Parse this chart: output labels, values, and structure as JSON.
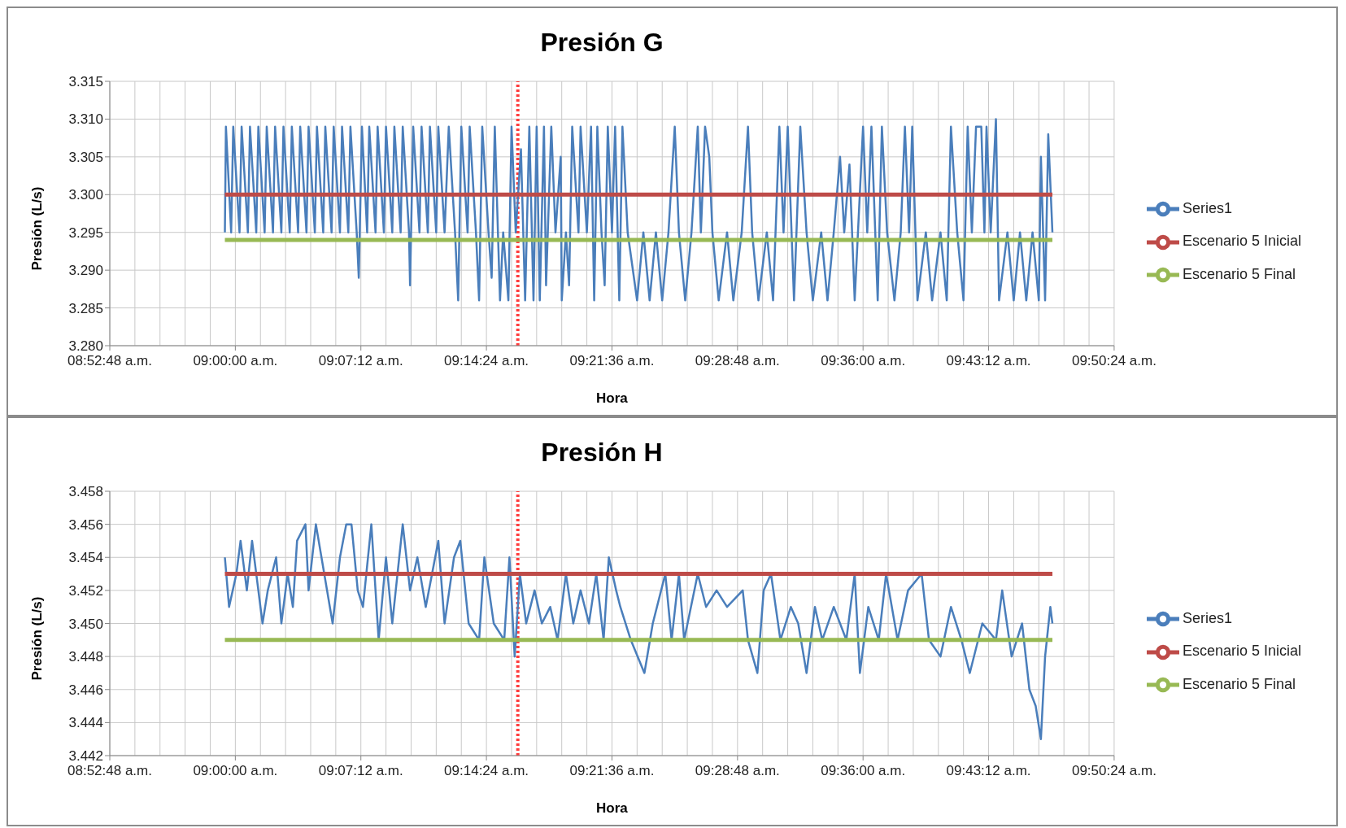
{
  "chart_data": [
    {
      "type": "line",
      "title": "Presión G",
      "xlabel": "Hora",
      "ylabel": "Presión (L/s)",
      "legend": "right",
      "grid": true,
      "xlim": [
        8.88,
        9.84
      ],
      "xticks": [
        {
          "value": 8.88,
          "label": "08:52:48 a.m."
        },
        {
          "value": 8.904,
          "label": null
        },
        {
          "value": 8.928,
          "label": null
        },
        {
          "value": 8.952,
          "label": null
        },
        {
          "value": 8.976,
          "label": null
        },
        {
          "value": 9.0,
          "label": "09:00:00 a.m."
        },
        {
          "value": 9.024,
          "label": null
        },
        {
          "value": 9.048,
          "label": null
        },
        {
          "value": 9.072,
          "label": null
        },
        {
          "value": 9.096,
          "label": null
        },
        {
          "value": 9.12,
          "label": "09:07:12 a.m."
        },
        {
          "value": 9.144,
          "label": null
        },
        {
          "value": 9.168,
          "label": null
        },
        {
          "value": 9.192,
          "label": null
        },
        {
          "value": 9.216,
          "label": null
        },
        {
          "value": 9.24,
          "label": "09:14:24 a.m."
        },
        {
          "value": 9.264,
          "label": null
        },
        {
          "value": 9.288,
          "label": null
        },
        {
          "value": 9.312,
          "label": null
        },
        {
          "value": 9.336,
          "label": null
        },
        {
          "value": 9.36,
          "label": "09:21:36 a.m."
        },
        {
          "value": 9.384,
          "label": null
        },
        {
          "value": 9.408,
          "label": null
        },
        {
          "value": 9.432,
          "label": null
        },
        {
          "value": 9.456,
          "label": null
        },
        {
          "value": 9.48,
          "label": "09:28:48 a.m."
        },
        {
          "value": 9.504,
          "label": null
        },
        {
          "value": 9.528,
          "label": null
        },
        {
          "value": 9.552,
          "label": null
        },
        {
          "value": 9.576,
          "label": null
        },
        {
          "value": 9.6,
          "label": "09:36:00 a.m."
        },
        {
          "value": 9.624,
          "label": null
        },
        {
          "value": 9.648,
          "label": null
        },
        {
          "value": 9.672,
          "label": null
        },
        {
          "value": 9.696,
          "label": null
        },
        {
          "value": 9.72,
          "label": "09:43:12 a.m."
        },
        {
          "value": 9.744,
          "label": null
        },
        {
          "value": 9.768,
          "label": null
        },
        {
          "value": 9.792,
          "label": null
        },
        {
          "value": 9.816,
          "label": null
        },
        {
          "value": 9.84,
          "label": "09:50:24 a.m."
        }
      ],
      "ylim": [
        3.28,
        3.315
      ],
      "yticks": [
        {
          "value": 3.28,
          "label": "3.280"
        },
        3.285,
        {
          "value": 3.29,
          "label": "3.290"
        },
        3.295,
        {
          "value": 3.3,
          "label": "3.300"
        },
        3.305,
        {
          "value": 3.31,
          "label": "3.310"
        },
        3.315
      ],
      "ref_lines": [
        {
          "axis": "x",
          "value": 9.27,
          "color": "#ff3b3b",
          "line_style": "dotted"
        }
      ],
      "series": [
        {
          "name": "Series1",
          "color": "#4a7ebb",
          "x": [
            8.99,
            8.991,
            8.996,
            8.998,
            9.004,
            9.006,
            9.012,
            9.014,
            9.02,
            9.022,
            9.028,
            9.03,
            9.036,
            9.038,
            9.044,
            9.046,
            9.052,
            9.054,
            9.06,
            9.062,
            9.068,
            9.07,
            9.076,
            9.078,
            9.084,
            9.086,
            9.092,
            9.094,
            9.1,
            9.102,
            9.108,
            9.11,
            9.116,
            9.118,
            9.121,
            9.126,
            9.128,
            9.134,
            9.136,
            9.142,
            9.144,
            9.15,
            9.152,
            9.158,
            9.16,
            9.166,
            9.167,
            9.17,
            9.176,
            9.178,
            9.184,
            9.186,
            9.192,
            9.194,
            9.2,
            9.204,
            9.21,
            9.213,
            9.216,
            9.222,
            9.224,
            9.23,
            9.233,
            9.236,
            9.242,
            9.245,
            9.248,
            9.251,
            9.253,
            9.256,
            9.261,
            9.264,
            9.268,
            9.273,
            9.277,
            9.281,
            9.285,
            9.288,
            9.291,
            9.295,
            9.297,
            9.302,
            9.306,
            9.311,
            9.312,
            9.316,
            9.319,
            9.322,
            9.328,
            9.33,
            9.336,
            9.34,
            9.343,
            9.346,
            9.35,
            9.353,
            9.356,
            9.36,
            9.363,
            9.367,
            9.37,
            9.375,
            9.384,
            9.39,
            9.396,
            9.402,
            9.408,
            9.414,
            9.42,
            9.424,
            9.43,
            9.436,
            9.442,
            9.445,
            9.449,
            9.453,
            9.456,
            9.462,
            9.47,
            9.476,
            9.484,
            9.49,
            9.494,
            9.5,
            9.508,
            9.514,
            9.52,
            9.524,
            9.528,
            9.534,
            9.54,
            9.546,
            9.552,
            9.56,
            9.566,
            9.572,
            9.578,
            9.582,
            9.587,
            9.592,
            9.6,
            9.604,
            9.608,
            9.614,
            9.618,
            9.623,
            9.63,
            9.636,
            9.64,
            9.644,
            9.647,
            9.652,
            9.66,
            9.666,
            9.674,
            9.68,
            9.684,
            9.69,
            9.696,
            9.7,
            9.704,
            9.708,
            9.713,
            9.716,
            9.718,
            9.722,
            9.727,
            9.73,
            9.738,
            9.744,
            9.75,
            9.756,
            9.762,
            9.768,
            9.77,
            9.774,
            9.777,
            9.781
          ],
          "values": [
            3.295,
            3.309,
            3.295,
            3.309,
            3.295,
            3.309,
            3.295,
            3.309,
            3.295,
            3.309,
            3.295,
            3.309,
            3.295,
            3.309,
            3.295,
            3.309,
            3.295,
            3.309,
            3.295,
            3.309,
            3.295,
            3.309,
            3.295,
            3.309,
            3.295,
            3.309,
            3.295,
            3.309,
            3.295,
            3.309,
            3.295,
            3.309,
            3.295,
            3.289,
            3.309,
            3.295,
            3.309,
            3.295,
            3.309,
            3.295,
            3.309,
            3.295,
            3.309,
            3.295,
            3.309,
            3.295,
            3.288,
            3.309,
            3.295,
            3.309,
            3.295,
            3.309,
            3.295,
            3.309,
            3.295,
            3.309,
            3.295,
            3.286,
            3.309,
            3.295,
            3.309,
            3.295,
            3.286,
            3.309,
            3.295,
            3.289,
            3.309,
            3.295,
            3.286,
            3.295,
            3.286,
            3.309,
            3.295,
            3.306,
            3.286,
            3.309,
            3.286,
            3.309,
            3.286,
            3.309,
            3.288,
            3.309,
            3.295,
            3.305,
            3.286,
            3.295,
            3.288,
            3.309,
            3.295,
            3.309,
            3.295,
            3.309,
            3.286,
            3.309,
            3.295,
            3.288,
            3.309,
            3.295,
            3.309,
            3.286,
            3.309,
            3.295,
            3.286,
            3.295,
            3.286,
            3.295,
            3.286,
            3.295,
            3.309,
            3.295,
            3.286,
            3.295,
            3.309,
            3.295,
            3.309,
            3.305,
            3.295,
            3.286,
            3.295,
            3.286,
            3.295,
            3.309,
            3.295,
            3.286,
            3.295,
            3.286,
            3.309,
            3.295,
            3.309,
            3.286,
            3.309,
            3.295,
            3.286,
            3.295,
            3.286,
            3.295,
            3.305,
            3.295,
            3.304,
            3.286,
            3.309,
            3.295,
            3.309,
            3.286,
            3.309,
            3.295,
            3.286,
            3.295,
            3.309,
            3.295,
            3.309,
            3.286,
            3.295,
            3.286,
            3.295,
            3.286,
            3.309,
            3.295,
            3.286,
            3.309,
            3.295,
            3.309,
            3.309,
            3.295,
            3.309,
            3.295,
            3.31,
            3.286,
            3.295,
            3.286,
            3.295,
            3.286,
            3.295,
            3.286,
            3.305,
            3.286,
            3.308,
            3.295
          ]
        },
        {
          "name": "Escenario 5 Inicial",
          "color": "#be4b48",
          "x": [
            8.99,
            9.781
          ],
          "values": [
            3.3,
            3.3
          ]
        },
        {
          "name": "Escenario 5 Final",
          "color": "#98b954",
          "x": [
            8.99,
            9.781
          ],
          "values": [
            3.294,
            3.294
          ]
        }
      ]
    },
    {
      "type": "line",
      "title": "Presión H",
      "xlabel": "Hora",
      "ylabel": "Presión (L/s)",
      "legend": "right",
      "grid": true,
      "xlim": [
        8.88,
        9.84
      ],
      "xticks": [
        {
          "value": 8.88,
          "label": "08:52:48 a.m."
        },
        {
          "value": 8.904,
          "label": null
        },
        {
          "value": 8.928,
          "label": null
        },
        {
          "value": 8.952,
          "label": null
        },
        {
          "value": 8.976,
          "label": null
        },
        {
          "value": 9.0,
          "label": "09:00:00 a.m."
        },
        {
          "value": 9.024,
          "label": null
        },
        {
          "value": 9.048,
          "label": null
        },
        {
          "value": 9.072,
          "label": null
        },
        {
          "value": 9.096,
          "label": null
        },
        {
          "value": 9.12,
          "label": "09:07:12 a.m."
        },
        {
          "value": 9.144,
          "label": null
        },
        {
          "value": 9.168,
          "label": null
        },
        {
          "value": 9.192,
          "label": null
        },
        {
          "value": 9.216,
          "label": null
        },
        {
          "value": 9.24,
          "label": "09:14:24 a.m."
        },
        {
          "value": 9.264,
          "label": null
        },
        {
          "value": 9.288,
          "label": null
        },
        {
          "value": 9.312,
          "label": null
        },
        {
          "value": 9.336,
          "label": null
        },
        {
          "value": 9.36,
          "label": "09:21:36 a.m."
        },
        {
          "value": 9.384,
          "label": null
        },
        {
          "value": 9.408,
          "label": null
        },
        {
          "value": 9.432,
          "label": null
        },
        {
          "value": 9.456,
          "label": null
        },
        {
          "value": 9.48,
          "label": "09:28:48 a.m."
        },
        {
          "value": 9.504,
          "label": null
        },
        {
          "value": 9.528,
          "label": null
        },
        {
          "value": 9.552,
          "label": null
        },
        {
          "value": 9.576,
          "label": null
        },
        {
          "value": 9.6,
          "label": "09:36:00 a.m."
        },
        {
          "value": 9.624,
          "label": null
        },
        {
          "value": 9.648,
          "label": null
        },
        {
          "value": 9.672,
          "label": null
        },
        {
          "value": 9.696,
          "label": null
        },
        {
          "value": 9.72,
          "label": "09:43:12 a.m."
        },
        {
          "value": 9.744,
          "label": null
        },
        {
          "value": 9.768,
          "label": null
        },
        {
          "value": 9.792,
          "label": null
        },
        {
          "value": 9.816,
          "label": null
        },
        {
          "value": 9.84,
          "label": "09:50:24 a.m."
        }
      ],
      "ylim": [
        3.442,
        3.458
      ],
      "yticks": [
        3.442,
        3.444,
        3.446,
        3.448,
        {
          "value": 3.45,
          "label": "3.450"
        },
        3.452,
        3.454,
        3.456,
        3.458
      ],
      "ref_lines": [
        {
          "axis": "x",
          "value": 9.27,
          "color": "#ff3b3b",
          "line_style": "dotted"
        }
      ],
      "series": [
        {
          "name": "Series1",
          "color": "#4a7ebb",
          "x": [
            8.99,
            8.994,
            9.001,
            9.005,
            9.011,
            9.016,
            9.022,
            9.026,
            9.031,
            9.039,
            9.044,
            9.05,
            9.055,
            9.059,
            9.067,
            9.07,
            9.077,
            9.085,
            9.093,
            9.1,
            9.106,
            9.111,
            9.117,
            9.122,
            9.13,
            9.137,
            9.144,
            9.15,
            9.16,
            9.167,
            9.174,
            9.182,
            9.194,
            9.2,
            9.209,
            9.215,
            9.223,
            9.233,
            9.238,
            9.247,
            9.257,
            9.262,
            9.267,
            9.272,
            9.278,
            9.286,
            9.293,
            9.301,
            9.308,
            9.316,
            9.323,
            9.33,
            9.338,
            9.345,
            9.352,
            9.357,
            9.364,
            9.368,
            9.378,
            9.391,
            9.399,
            9.411,
            9.417,
            9.424,
            9.429,
            9.442,
            9.45,
            9.46,
            9.47,
            9.485,
            9.49,
            9.499,
            9.505,
            9.512,
            9.521,
            9.531,
            9.538,
            9.546,
            9.554,
            9.561,
            9.572,
            9.584,
            9.592,
            9.597,
            9.605,
            9.615,
            9.622,
            9.633,
            9.643,
            9.656,
            9.663,
            9.674,
            9.684,
            9.694,
            9.702,
            9.714,
            9.727,
            9.733,
            9.742,
            9.752,
            9.759,
            9.765,
            9.77,
            9.774,
            9.779,
            9.781
          ],
          "values": [
            3.454,
            3.451,
            3.453,
            3.455,
            3.452,
            3.455,
            3.452,
            3.45,
            3.452,
            3.454,
            3.45,
            3.453,
            3.451,
            3.455,
            3.456,
            3.452,
            3.456,
            3.453,
            3.45,
            3.454,
            3.456,
            3.456,
            3.452,
            3.451,
            3.456,
            3.449,
            3.454,
            3.45,
            3.456,
            3.452,
            3.454,
            3.451,
            3.455,
            3.45,
            3.454,
            3.455,
            3.45,
            3.449,
            3.454,
            3.45,
            3.449,
            3.454,
            3.448,
            3.453,
            3.45,
            3.452,
            3.45,
            3.451,
            3.449,
            3.453,
            3.45,
            3.452,
            3.45,
            3.453,
            3.449,
            3.454,
            3.452,
            3.451,
            3.449,
            3.447,
            3.45,
            3.453,
            3.449,
            3.453,
            3.449,
            3.453,
            3.451,
            3.452,
            3.451,
            3.452,
            3.449,
            3.447,
            3.452,
            3.453,
            3.449,
            3.451,
            3.45,
            3.447,
            3.451,
            3.449,
            3.451,
            3.449,
            3.453,
            3.447,
            3.451,
            3.449,
            3.453,
            3.449,
            3.452,
            3.453,
            3.449,
            3.448,
            3.451,
            3.449,
            3.447,
            3.45,
            3.449,
            3.452,
            3.448,
            3.45,
            3.446,
            3.445,
            3.443,
            3.448,
            3.451,
            3.45
          ]
        },
        {
          "name": "Escenario 5 Inicial",
          "color": "#be4b48",
          "x": [
            8.99,
            9.781
          ],
          "values": [
            3.453,
            3.453
          ]
        },
        {
          "name": "Escenario 5 Final",
          "color": "#98b954",
          "x": [
            8.99,
            9.781
          ],
          "values": [
            3.449,
            3.449
          ]
        }
      ]
    }
  ]
}
